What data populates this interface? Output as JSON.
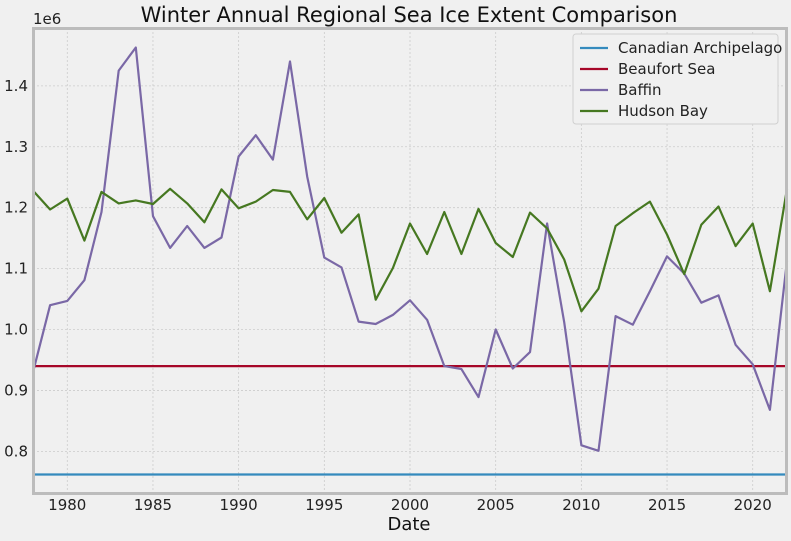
{
  "chart_data": {
    "type": "line",
    "title": "Winter Annual Regional Sea Ice Extent Comparison",
    "xlabel": "Date",
    "ylabel": "",
    "y_offset_label": "1e6",
    "xlim": [
      1978,
      2022
    ],
    "ylim": [
      730000,
      1495000
    ],
    "x_ticks": [
      1980,
      1985,
      1990,
      1995,
      2000,
      2005,
      2010,
      2015,
      2020
    ],
    "y_ticks": [
      800000,
      900000,
      1000000,
      1100000,
      1200000,
      1300000,
      1400000
    ],
    "y_tick_labels": [
      "0.8",
      "0.9",
      "1.0",
      "1.1",
      "1.2",
      "1.3",
      "1.4"
    ],
    "grid": true,
    "legend_position": "top-right",
    "x": [
      1978,
      1979,
      1980,
      1981,
      1982,
      1983,
      1984,
      1985,
      1986,
      1987,
      1988,
      1989,
      1990,
      1991,
      1992,
      1993,
      1994,
      1995,
      1996,
      1997,
      1998,
      1999,
      2000,
      2001,
      2002,
      2003,
      2004,
      2005,
      2006,
      2007,
      2008,
      2009,
      2010,
      2011,
      2012,
      2013,
      2014,
      2015,
      2016,
      2017,
      2018,
      2019,
      2020,
      2021,
      2022
    ],
    "series": [
      {
        "name": "Canadian Archipelago",
        "color": "#348abd",
        "values": [
          762000,
          762000,
          762000,
          762000,
          762000,
          762000,
          762000,
          762000,
          762000,
          762000,
          762000,
          762000,
          762000,
          762000,
          762000,
          762000,
          762000,
          762000,
          762000,
          762000,
          762000,
          762000,
          762000,
          762000,
          762000,
          762000,
          762000,
          762000,
          762000,
          762000,
          762000,
          762000,
          762000,
          762000,
          762000,
          762000,
          762000,
          762000,
          762000,
          762000,
          762000,
          762000,
          762000,
          762000,
          762000
        ]
      },
      {
        "name": "Beaufort Sea",
        "color": "#a60628",
        "values": [
          940000,
          940000,
          940000,
          940000,
          940000,
          940000,
          940000,
          940000,
          940000,
          940000,
          940000,
          940000,
          940000,
          940000,
          940000,
          940000,
          940000,
          940000,
          940000,
          940000,
          940000,
          940000,
          940000,
          940000,
          940000,
          940000,
          940000,
          940000,
          940000,
          940000,
          940000,
          940000,
          940000,
          940000,
          940000,
          940000,
          940000,
          940000,
          940000,
          940000,
          940000,
          940000,
          940000,
          940000,
          940000
        ]
      },
      {
        "name": "Baffin",
        "color": "#7a68a6",
        "values": [
          930000,
          1040000,
          1047000,
          1081000,
          1193000,
          1425000,
          1463000,
          1186000,
          1134000,
          1170000,
          1134000,
          1151000,
          1284000,
          1319000,
          1279000,
          1440000,
          1251000,
          1118000,
          1102000,
          1013000,
          1009000,
          1024000,
          1048000,
          1016000,
          940000,
          935000,
          889000,
          1000000,
          936000,
          963000,
          1174000,
          1012000,
          810000,
          801000,
          1022000,
          1008000,
          1063000,
          1120000,
          1092000,
          1044000,
          1056000,
          975000,
          943000,
          868000,
          1113000
        ]
      },
      {
        "name": "Hudson Bay",
        "color": "#467821",
        "values": [
          1228000,
          1197000,
          1215000,
          1146000,
          1226000,
          1207000,
          1212000,
          1206000,
          1231000,
          1207000,
          1176000,
          1230000,
          1199000,
          1210000,
          1229000,
          1226000,
          1181000,
          1216000,
          1159000,
          1189000,
          1049000,
          1101000,
          1174000,
          1124000,
          1193000,
          1124000,
          1198000,
          1142000,
          1119000,
          1192000,
          1166000,
          1115000,
          1030000,
          1067000,
          1170000,
          1191000,
          1210000,
          1156000,
          1091000,
          1172000,
          1202000,
          1137000,
          1174000,
          1063000,
          1231000
        ]
      }
    ]
  }
}
